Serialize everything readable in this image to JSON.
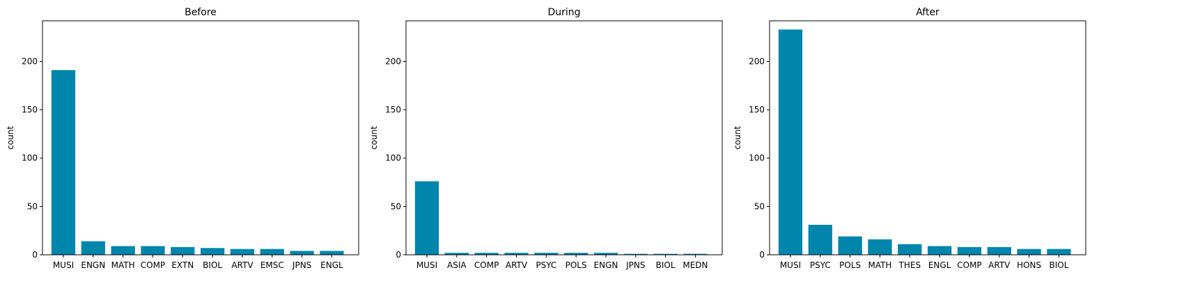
{
  "chart_data": [
    {
      "type": "bar",
      "title": "Before",
      "ylabel": "count",
      "xlabel": "",
      "ylim": [
        0,
        242
      ],
      "yticks": [
        0,
        50,
        100,
        150,
        200
      ],
      "categories": [
        "MUSI",
        "ENGN",
        "MATH",
        "COMP",
        "EXTN",
        "BIOL",
        "ARTV",
        "EMSC",
        "JPNS",
        "ENGL"
      ],
      "values": [
        191,
        14,
        9,
        9,
        8,
        7,
        6,
        6,
        4,
        4
      ],
      "color": "#0085ad"
    },
    {
      "type": "bar",
      "title": "During",
      "ylabel": "count",
      "xlabel": "",
      "ylim": [
        0,
        242
      ],
      "yticks": [
        0,
        50,
        100,
        150,
        200
      ],
      "categories": [
        "MUSI",
        "ASIA",
        "COMP",
        "ARTV",
        "PSYC",
        "POLS",
        "ENGN",
        "JPNS",
        "BIOL",
        "MEDN"
      ],
      "values": [
        76,
        2,
        2,
        2,
        2,
        2,
        2,
        1,
        1,
        1
      ],
      "color": "#0085ad"
    },
    {
      "type": "bar",
      "title": "After",
      "ylabel": "count",
      "xlabel": "",
      "ylim": [
        0,
        242
      ],
      "yticks": [
        0,
        50,
        100,
        150,
        200
      ],
      "categories": [
        "MUSI",
        "PSYC",
        "POLS",
        "MATH",
        "THES",
        "ENGL",
        "COMP",
        "ARTV",
        "HONS",
        "BIOL"
      ],
      "values": [
        233,
        31,
        19,
        16,
        11,
        9,
        8,
        8,
        6,
        6
      ],
      "color": "#0085ad"
    }
  ]
}
